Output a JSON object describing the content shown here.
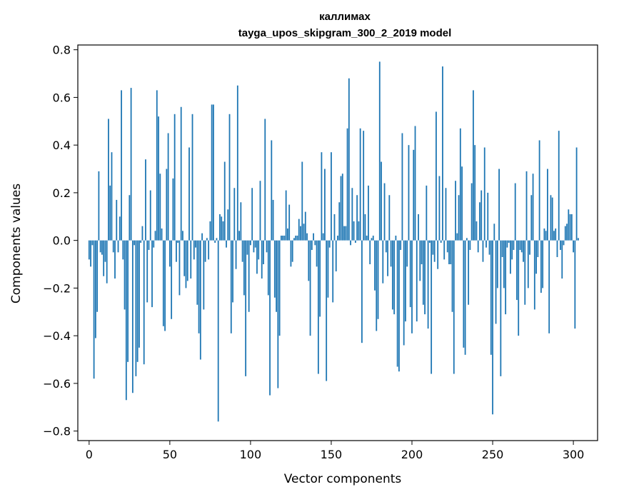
{
  "chart_data": {
    "type": "bar",
    "title_line1": "каллимах",
    "title_line2": "tayga_upos_skipgram_300_2_2019 model",
    "xlabel": "Vector components",
    "ylabel": "Components values",
    "xlim": [
      -7,
      315
    ],
    "ylim": [
      -0.84,
      0.82
    ],
    "xticks": [
      0,
      50,
      100,
      150,
      200,
      250,
      300
    ],
    "yticks": [
      -0.8,
      -0.6,
      -0.4,
      -0.2,
      0.0,
      0.2,
      0.4,
      0.6,
      0.8
    ],
    "ytick_labels": [
      "−0.8",
      "−0.6",
      "−0.4",
      "−0.2",
      "0.0",
      "0.2",
      "0.4",
      "0.6",
      "0.8"
    ],
    "bar_color": "#1f77b4",
    "values": [
      -0.08,
      -0.11,
      -0.02,
      -0.58,
      -0.41,
      -0.3,
      0.29,
      -0.05,
      -0.06,
      -0.15,
      -0.09,
      -0.18,
      0.51,
      0.23,
      0.37,
      -0.05,
      -0.16,
      0.17,
      -0.05,
      0.1,
      0.63,
      -0.08,
      -0.29,
      -0.67,
      -0.51,
      0.19,
      0.64,
      -0.64,
      -0.02,
      -0.57,
      -0.51,
      -0.45,
      -0.01,
      0.06,
      -0.52,
      0.34,
      -0.26,
      -0.04,
      0.21,
      -0.28,
      -0.03,
      0.04,
      0.63,
      0.52,
      0.28,
      0.05,
      -0.36,
      -0.38,
      0.3,
      0.45,
      -0.11,
      -0.33,
      0.26,
      0.53,
      -0.09,
      -0.01,
      -0.23,
      0.56,
      0.04,
      -0.15,
      -0.2,
      -0.17,
      0.39,
      -0.16,
      0.53,
      -0.08,
      -0.03,
      -0.27,
      -0.39,
      -0.5,
      0.03,
      -0.29,
      -0.09,
      0.01,
      -0.08,
      0.08,
      0.57,
      0.57,
      -0.01,
      0.01,
      -0.76,
      0.11,
      0.1,
      0.08,
      0.33,
      -0.03,
      0.13,
      0.53,
      -0.39,
      -0.26,
      0.22,
      -0.12,
      0.65,
      0.04,
      0.16,
      -0.09,
      -0.23,
      -0.57,
      -0.06,
      -0.3,
      -0.02,
      0.22,
      -0.05,
      -0.03,
      -0.14,
      -0.08,
      0.25,
      -0.16,
      -0.1,
      0.51,
      -0.05,
      -0.23,
      -0.65,
      0.42,
      0.17,
      -0.24,
      -0.3,
      -0.62,
      -0.4,
      0.02,
      0.02,
      0.02,
      0.21,
      0.05,
      0.15,
      -0.11,
      -0.09,
      0.01,
      0.02,
      0.02,
      0.09,
      0.06,
      0.33,
      0.07,
      0.12,
      0.03,
      -0.17,
      -0.4,
      -0.04,
      0.03,
      -0.02,
      -0.11,
      -0.56,
      -0.32,
      0.37,
      0.03,
      0.3,
      -0.59,
      -0.24,
      -0.03,
      0.37,
      -0.26,
      0.11,
      -0.13,
      0.02,
      0.16,
      0.27,
      0.28,
      0.06,
      0.06,
      0.47,
      0.68,
      -0.02,
      0.22,
      0.08,
      -0.01,
      0.19,
      0.08,
      0.47,
      -0.43,
      0.46,
      0.11,
      0.02,
      0.23,
      -0.1,
      0.01,
      0.02,
      -0.21,
      -0.38,
      -0.33,
      0.75,
      0.33,
      -0.18,
      0.24,
      -0.05,
      -0.15,
      0.19,
      -0.11,
      -0.29,
      -0.31,
      0.02,
      -0.53,
      -0.55,
      -0.04,
      0.45,
      -0.44,
      -0.34,
      -0.11,
      0.4,
      -0.28,
      -0.39,
      0.38,
      0.48,
      -0.34,
      0.11,
      -0.17,
      -0.1,
      -0.27,
      -0.31,
      0.23,
      -0.37,
      -0.01,
      -0.56,
      -0.06,
      -0.09,
      0.54,
      -0.12,
      0.27,
      -0.01,
      0.73,
      -0.08,
      0.22,
      -0.05,
      -0.1,
      -0.1,
      -0.3,
      -0.56,
      0.25,
      0.03,
      0.19,
      0.47,
      0.31,
      -0.45,
      -0.48,
      0.01,
      -0.27,
      -0.04,
      0.24,
      0.63,
      0.4,
      0.08,
      -0.05,
      0.16,
      0.21,
      -0.09,
      0.39,
      -0.03,
      0.2,
      -0.06,
      -0.48,
      -0.73,
      0.07,
      -0.35,
      -0.2,
      0.3,
      -0.57,
      -0.07,
      -0.2,
      -0.31,
      -0.03,
      -0.01,
      -0.14,
      -0.08,
      -0.04,
      0.24,
      -0.25,
      -0.4,
      -0.04,
      -0.05,
      -0.09,
      -0.27,
      0.29,
      -0.2,
      -0.06,
      0.19,
      0.28,
      -0.29,
      -0.14,
      -0.07,
      0.42,
      -0.22,
      -0.2,
      0.05,
      0.04,
      0.3,
      -0.39,
      0.19,
      0.18,
      0.04,
      0.05,
      -0.07,
      0.46,
      -0.04,
      -0.16,
      -0.02,
      0.06,
      0.07,
      0.13,
      0.11,
      0.11,
      -0.05,
      -0.37,
      0.39,
      0.01
    ]
  }
}
